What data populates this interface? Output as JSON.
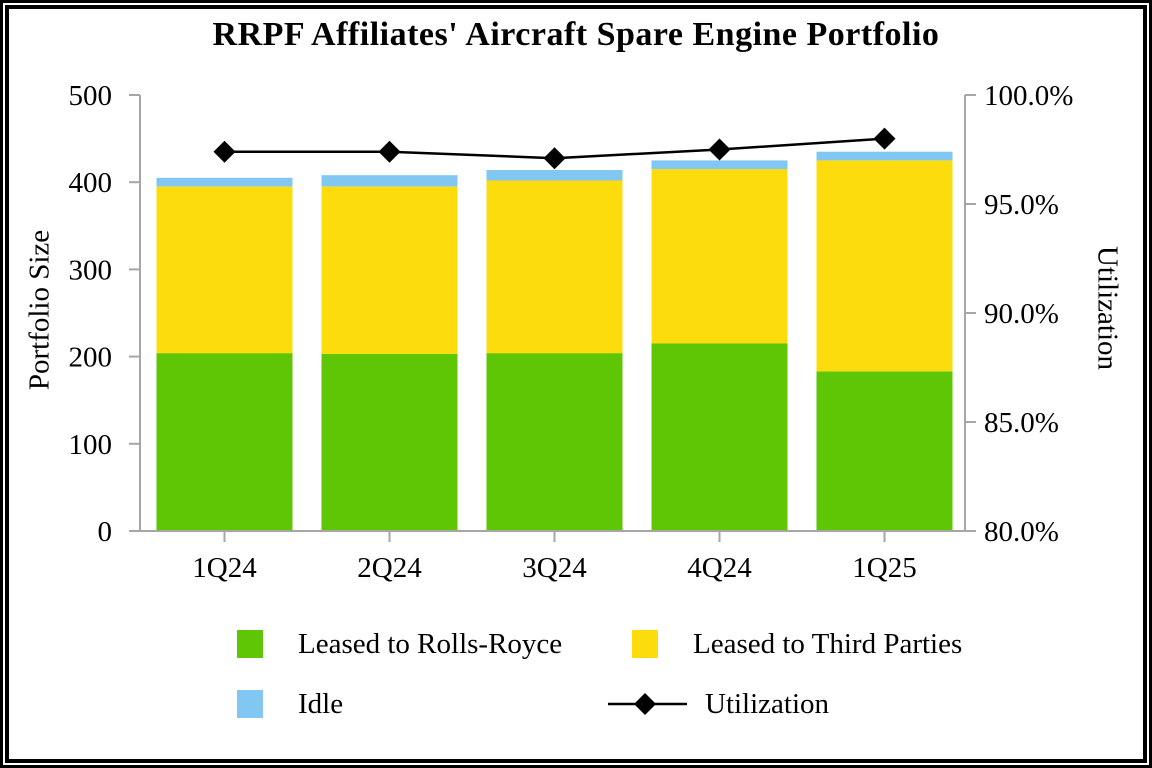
{
  "chart_data": {
    "type": "bar",
    "subtype": "stacked-bar-with-line",
    "title": "RRPF Affiliates' Aircraft Spare Engine Portfolio",
    "categories": [
      "1Q24",
      "2Q24",
      "3Q24",
      "4Q24",
      "1Q25"
    ],
    "series": [
      {
        "name": "Leased to Rolls-Royce",
        "type": "bar",
        "color": "#5FC605",
        "values": [
          204,
          203,
          204,
          215,
          183
        ]
      },
      {
        "name": "Leased to Third Parties",
        "type": "bar",
        "color": "#FDDC0D",
        "values": [
          191,
          192,
          198,
          200,
          242
        ]
      },
      {
        "name": "Idle",
        "type": "bar",
        "color": "#82C7F2",
        "values": [
          10,
          13,
          12,
          10,
          10
        ]
      },
      {
        "name": "Utilization",
        "type": "line",
        "color": "#000000",
        "axis": "right",
        "values": [
          97.4,
          97.4,
          97.1,
          97.5,
          98.0
        ]
      }
    ],
    "bar_totals": [
      405,
      408,
      414,
      425,
      435
    ],
    "axes": {
      "left": {
        "label": "Portfolio Size",
        "min": 0,
        "max": 500,
        "ticks": [
          {
            "value": 0,
            "label": "0"
          },
          {
            "value": 100,
            "label": "100"
          },
          {
            "value": 200,
            "label": "200"
          },
          {
            "value": 300,
            "label": "300"
          },
          {
            "value": 400,
            "label": "400"
          },
          {
            "value": 500,
            "label": "500"
          }
        ]
      },
      "right": {
        "label": "Utilization",
        "min": 80,
        "max": 100,
        "ticks": [
          {
            "value": 80,
            "label": "80.0%"
          },
          {
            "value": 85,
            "label": "85.0%"
          },
          {
            "value": 90,
            "label": "90.0%"
          },
          {
            "value": 95,
            "label": "95.0%"
          },
          {
            "value": 100,
            "label": "100.0%"
          }
        ]
      }
    },
    "grid": false,
    "legend_position": "bottom",
    "axis_color": "#A6A6A6",
    "background_color": "#FFFFFF",
    "frame_color": "#000000"
  }
}
